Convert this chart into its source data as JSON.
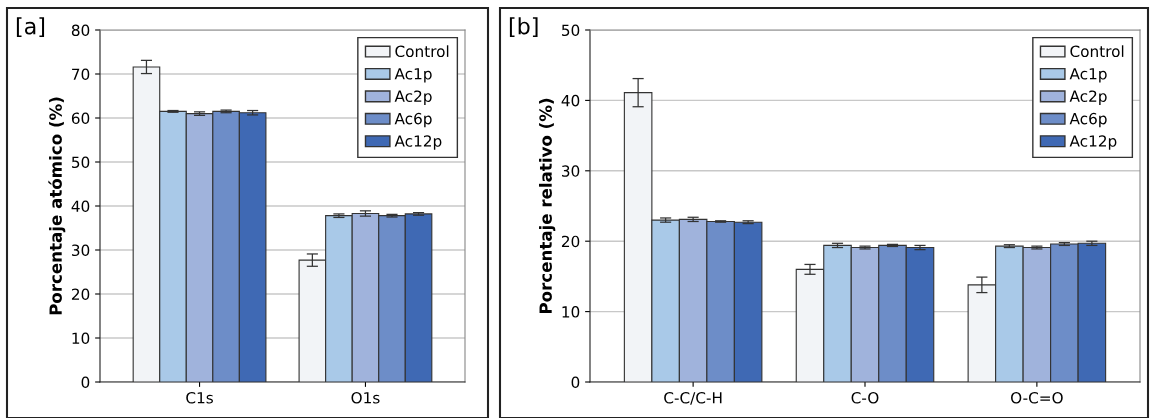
{
  "chart_data": [
    {
      "type": "bar",
      "ylabel": "Porcentaje atómico (%)",
      "annotations": [
        "[a]"
      ],
      "categories": [
        "C1s",
        "O1s"
      ],
      "ylim": [
        0,
        80
      ],
      "yticks": [
        0,
        10,
        20,
        30,
        40,
        50,
        60,
        70,
        80
      ],
      "grid": "y",
      "legend": "top right",
      "series": [
        {
          "name": "Control",
          "color": "#f2f4f7",
          "values": [
            71.6,
            27.7
          ],
          "errors": [
            1.5,
            1.4
          ]
        },
        {
          "name": "Ac1p",
          "color": "#a9c9e8",
          "values": [
            61.5,
            37.8
          ],
          "errors": [
            0.2,
            0.4
          ]
        },
        {
          "name": "Ac2p",
          "color": "#a0b3dc",
          "values": [
            61.0,
            38.3
          ],
          "errors": [
            0.4,
            0.6
          ]
        },
        {
          "name": "Ac6p",
          "color": "#6d8dc8",
          "values": [
            61.5,
            37.8
          ],
          "errors": [
            0.3,
            0.3
          ]
        },
        {
          "name": "Ac12p",
          "color": "#3f69b4",
          "values": [
            61.2,
            38.2
          ],
          "errors": [
            0.5,
            0.3
          ]
        }
      ]
    },
    {
      "type": "bar",
      "ylabel": "Porcentaje relativo (%)",
      "annotations": [
        "[b]"
      ],
      "categories": [
        "C-C/C-H",
        "C-O",
        "O-C=O"
      ],
      "ylim": [
        0,
        50
      ],
      "yticks": [
        0,
        10,
        20,
        30,
        40,
        50
      ],
      "grid": "y",
      "legend": "top right",
      "series": [
        {
          "name": "Control",
          "color": "#f2f4f7",
          "values": [
            41.1,
            16.0,
            13.8
          ],
          "errors": [
            2.0,
            0.7,
            1.1
          ]
        },
        {
          "name": "Ac1p",
          "color": "#a9c9e8",
          "values": [
            23.0,
            19.4,
            19.3
          ],
          "errors": [
            0.3,
            0.3,
            0.2
          ]
        },
        {
          "name": "Ac2p",
          "color": "#a0b3dc",
          "values": [
            23.1,
            19.1,
            19.1
          ],
          "errors": [
            0.3,
            0.2,
            0.2
          ]
        },
        {
          "name": "Ac6p",
          "color": "#6d8dc8",
          "values": [
            22.8,
            19.4,
            19.6
          ],
          "errors": [
            0.1,
            0.15,
            0.2
          ]
        },
        {
          "name": "Ac12p",
          "color": "#3f69b4",
          "values": [
            22.7,
            19.1,
            19.7
          ],
          "errors": [
            0.2,
            0.3,
            0.3
          ]
        }
      ]
    }
  ]
}
